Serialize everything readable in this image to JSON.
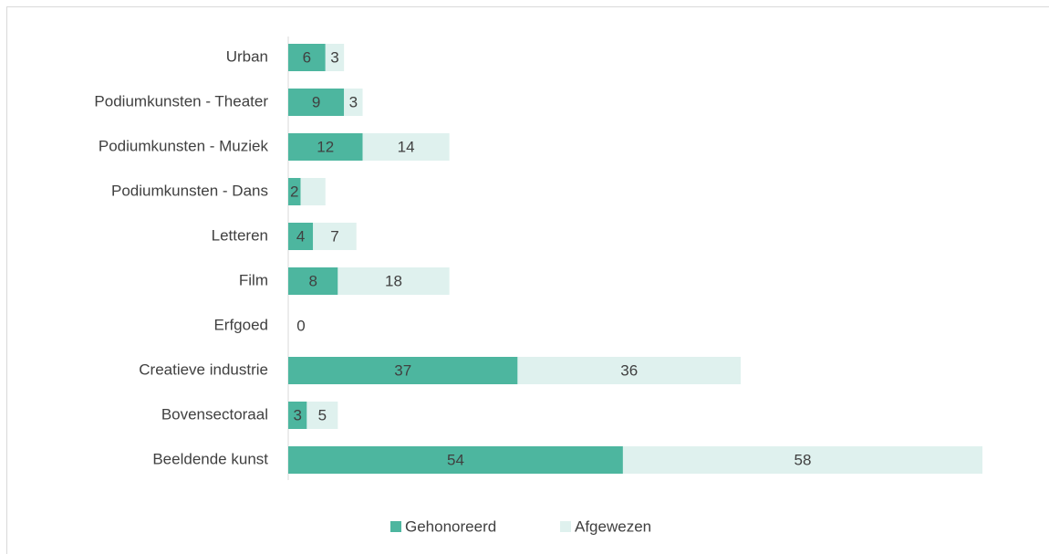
{
  "chart_data": {
    "type": "stacked-bar-horizontal",
    "categories": [
      "Urban",
      "Podiumkunsten - Theater",
      "Podiumkunsten - Muziek",
      "Podiumkunsten - Dans",
      "Letteren",
      "Film",
      "Erfgoed",
      "Creatieve industrie",
      "Bovensectoraal",
      "Beeldende kunst"
    ],
    "series": [
      {
        "name": "Gehonoreerd",
        "color": "#4db69f",
        "values": [
          6,
          9,
          12,
          2,
          4,
          8,
          0,
          37,
          3,
          54
        ]
      },
      {
        "name": "Afgewezen",
        "color": "#dff1ee",
        "values": [
          3,
          3,
          14,
          4,
          7,
          18,
          0,
          36,
          5,
          58
        ],
        "value_labels": [
          "3",
          "3",
          "14",
          null,
          "7",
          "18",
          null,
          "36",
          "5",
          "58"
        ]
      }
    ],
    "xlim": [
      0,
      112
    ],
    "legend": "bottom"
  }
}
